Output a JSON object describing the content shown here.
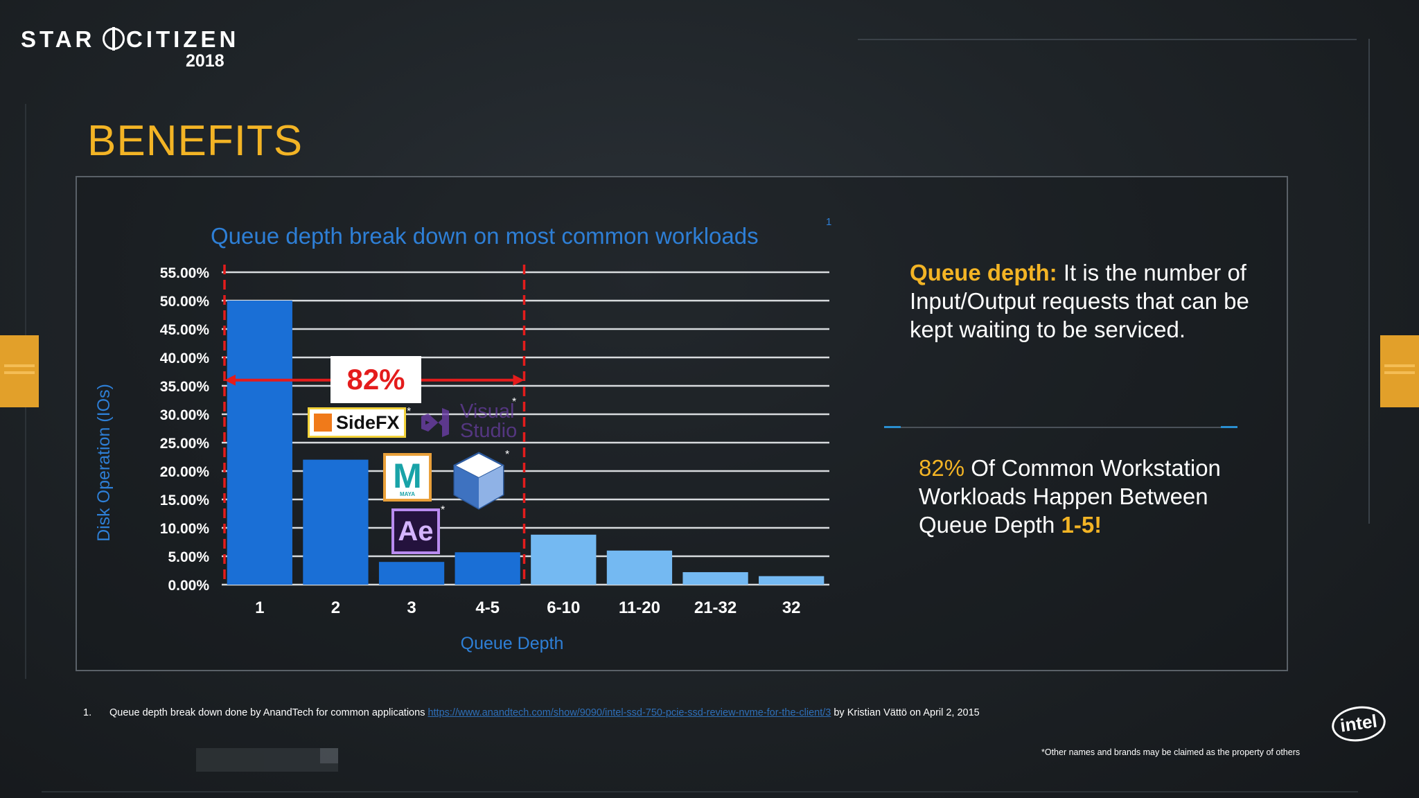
{
  "logo": {
    "name_left": "STAR",
    "name_right": "CITIZEN",
    "year": "2018"
  },
  "page_title": "BENEFITS",
  "chart_title": "Queue depth break down on most common workloads",
  "footnote_ref": "1",
  "chart_data": {
    "type": "bar",
    "title": "Queue depth break down on most common workloads",
    "xlabel": "Queue Depth",
    "ylabel": "Disk Operation (IOs)",
    "ylim": [
      0,
      55
    ],
    "yticks": [
      "0.00%",
      "5.00%",
      "10.00%",
      "15.00%",
      "20.00%",
      "25.00%",
      "30.00%",
      "35.00%",
      "40.00%",
      "45.00%",
      "50.00%",
      "55.00%"
    ],
    "categories": [
      "1",
      "2",
      "3",
      "4-5",
      "6-10",
      "11-20",
      "21-32",
      "32"
    ],
    "values": [
      50,
      22,
      4,
      5.7,
      8.8,
      6,
      2.2,
      1.5
    ],
    "bar_colors": [
      "#1a6fd6",
      "#1a6fd6",
      "#1a6fd6",
      "#1a6fd6",
      "#74b9f2",
      "#74b9f2",
      "#74b9f2",
      "#74b9f2"
    ],
    "grid": true,
    "annotation": {
      "text": "82%",
      "color": "#e41c1c",
      "bracket_categories": [
        "1",
        "4-5"
      ],
      "arrow_y": 36
    }
  },
  "app_logos": {
    "sidefx": "SideFX",
    "visual_studio": "Visual Studio",
    "maya": "M",
    "maya_sub": "MAYA",
    "ae": "Ae",
    "star": "*"
  },
  "definition": {
    "label": "Queue depth:",
    "text": " It is the number of Input/Output requests that can be kept waiting to be serviced."
  },
  "highlight": {
    "pct": "82%",
    "text": " Of Common Workstation Workloads Happen Between Queue Depth ",
    "range": "1-5!"
  },
  "footnote": {
    "num": "1.",
    "text": "Queue depth break down done by AnandTech for common applications ",
    "link": "https://www.anandtech.com/show/9090/intel-ssd-750-pcie-ssd-review-nvme-for-the-client/3",
    "suffix": " by Kristian Vättö on April 2, 2015"
  },
  "disclaimer": "*Other names and brands may be claimed as the property of others",
  "intel_logo": "intel",
  "colors": {
    "accent": "#f3b425",
    "chart_blue": "#2e7fd6",
    "callout_red": "#e41c1c"
  }
}
